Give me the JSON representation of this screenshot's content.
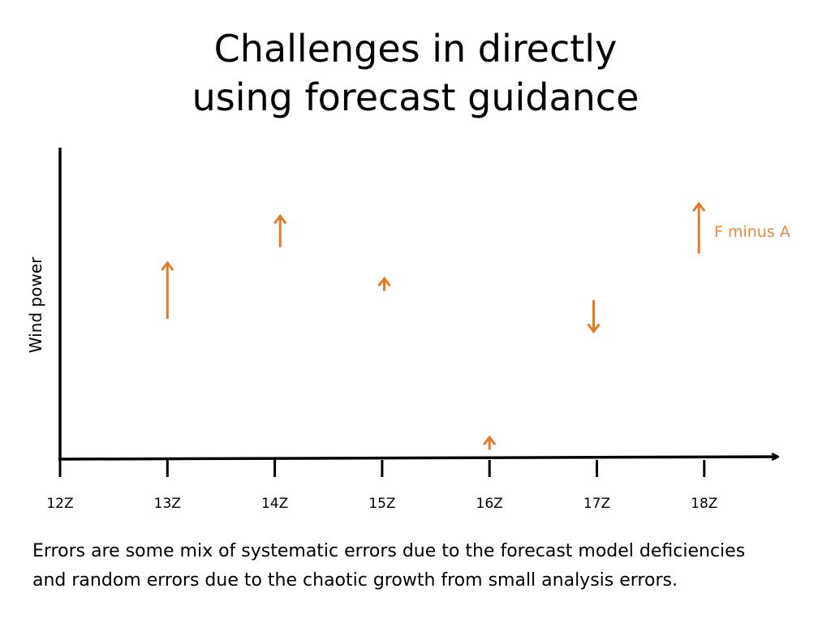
{
  "slide": {
    "title_lines": [
      "Challenges in directly",
      "using forecast guidance"
    ],
    "caption_lines": [
      "Errors are some mix of systematic errors due to the forecast model deficiencies",
      "and random errors due to the chaotic growth from small analysis errors."
    ]
  },
  "colors": {
    "arrow": "#E07B28",
    "legend_text": "#E8893A",
    "axis": "#000000"
  },
  "chart_data": {
    "type": "diagram-arrows",
    "title": "",
    "xlabel": "",
    "ylabel": "Wind power",
    "x_ticks": [
      "12Z",
      "13Z",
      "14Z",
      "15Z",
      "16Z",
      "17Z",
      "18Z"
    ],
    "y_range": [
      0,
      100
    ],
    "legend": {
      "label": "F minus A",
      "placement": "top-right"
    },
    "arrows": [
      {
        "x": 1.0,
        "from": 45,
        "to": 63,
        "direction": "up"
      },
      {
        "x": 2.05,
        "from": 68,
        "to": 78,
        "direction": "up"
      },
      {
        "x": 3.02,
        "from": 54,
        "to": 58,
        "direction": "up"
      },
      {
        "x": 4.0,
        "from": 3,
        "to": 7,
        "direction": "up"
      },
      {
        "x": 4.97,
        "from": 51,
        "to": 41,
        "direction": "down"
      },
      {
        "x": 5.95,
        "from": 66,
        "to": 82,
        "direction": "up"
      }
    ]
  }
}
